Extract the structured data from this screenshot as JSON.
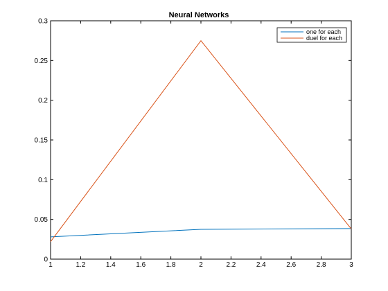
{
  "chart_data": {
    "type": "line",
    "title": "Neural Networks",
    "xlabel": "",
    "ylabel": "",
    "xlim": [
      1,
      3
    ],
    "ylim": [
      0,
      0.3
    ],
    "grid": false,
    "legend_position": "top-right",
    "x_ticks": [
      "1",
      "1.2",
      "1.4",
      "1.6",
      "1.8",
      "2",
      "2.2",
      "2.4",
      "2.6",
      "2.8",
      "3"
    ],
    "y_ticks": [
      "0",
      "0.05",
      "0.1",
      "0.15",
      "0.2",
      "0.25",
      "0.3"
    ],
    "x": [
      1,
      2,
      3
    ],
    "series": [
      {
        "name": "one for each",
        "color": "#0072BD",
        "values": [
          0.028,
          0.0375,
          0.0385
        ]
      },
      {
        "name": "duel for each",
        "color": "#D95319",
        "values": [
          0.022,
          0.275,
          0.038
        ]
      }
    ]
  }
}
